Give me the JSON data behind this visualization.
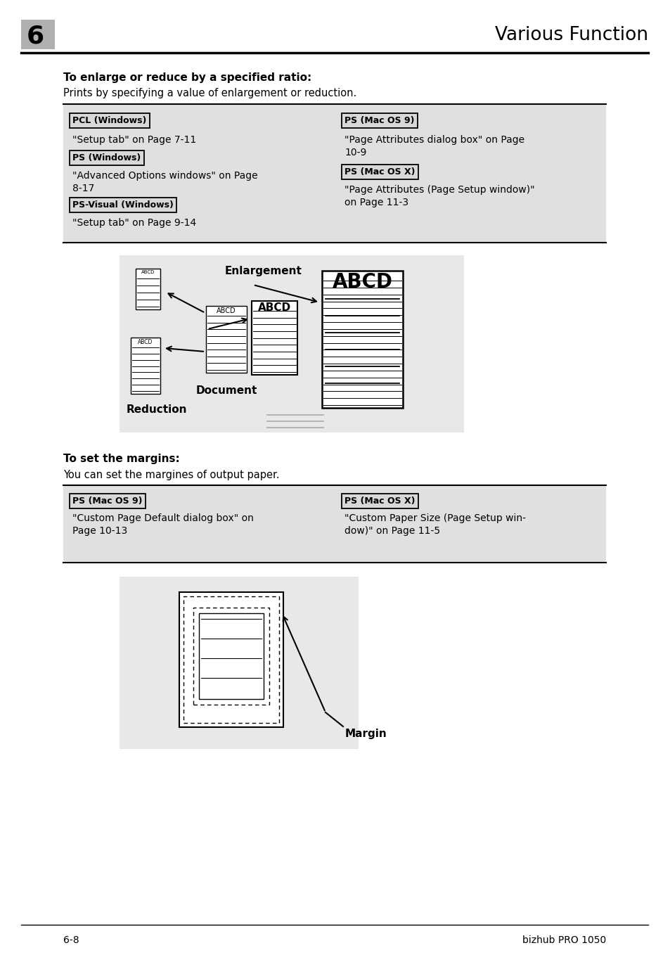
{
  "page_title": "Various Function",
  "chapter_num": "6",
  "footer_left": "6-8",
  "footer_right": "bizhub PRO 1050",
  "section1_heading": "To enlarge or reduce by a specified ratio:",
  "section1_body": "Prints by specifying a value of enlargement or reduction.",
  "table1_col1_label1": "PCL (Windows)",
  "table1_col1_text1": "\"Setup tab\" on Page 7-11",
  "table1_col1_label2": "PS (Windows)",
  "table1_col1_text2": "\"Advanced Options windows\" on Page\n8-17",
  "table1_col1_label3": "PS-Visual (Windows)",
  "table1_col1_text3": "\"Setup tab\" on Page 9-14",
  "table1_col2_label1": "PS (Mac OS 9)",
  "table1_col2_text1": "\"Page Attributes dialog box\" on Page\n10-9",
  "table1_col2_label2": "PS (Mac OS X)",
  "table1_col2_text2": "\"Page Attributes (Page Setup window)\"\non Page 11-3",
  "section2_heading": "To set the margins:",
  "section2_body": "You can set the margines of output paper.",
  "table2_col1_label": "PS (Mac OS 9)",
  "table2_col1_text": "\"Custom Page Default dialog box\" on\nPage 10-13",
  "table2_col2_label": "PS (Mac OS X)",
  "table2_col2_text": "\"Custom Paper Size (Page Setup win-\ndow)\" on Page 11-5",
  "bg_color": "#ffffff",
  "gray_bg": "#e0e0e0",
  "label_bg": "#d8d8d8",
  "diag_bg": "#e8e8e8"
}
